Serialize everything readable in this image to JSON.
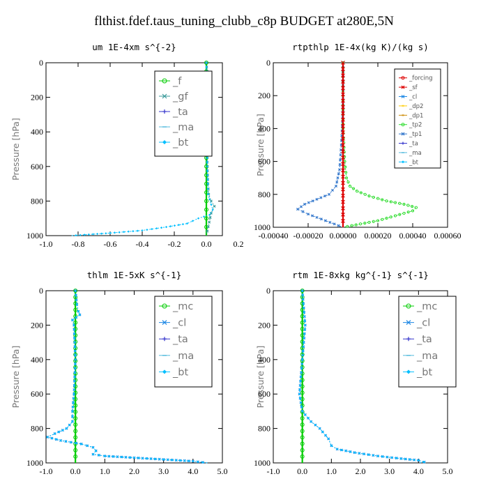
{
  "title": "flthist.fdef.taus_tuning_clubb_c8p  BUDGET at280E,5N",
  "chart_data": [
    {
      "type": "line",
      "title": "um  1E-4xm s^{-2}",
      "ylabel": "Pressure [hPa]",
      "xlim": [
        -1.0,
        0.1
      ],
      "ylim": [
        1000,
        0
      ],
      "xticks": [
        "-1.0",
        "-0.8",
        "-0.6",
        "-0.4",
        "-0.2",
        "0.0",
        "0.2"
      ],
      "xtick_values": [
        -1.0,
        -0.8,
        -0.6,
        -0.4,
        -0.2,
        0.0,
        0.2
      ],
      "yticks": [
        "0",
        "200",
        "400",
        "600",
        "800",
        "1000"
      ],
      "legend": [
        "_f",
        "_gf",
        "_ta",
        "_ma",
        "_bt"
      ],
      "legend_position": "top-right",
      "series": [
        {
          "name": "_f",
          "color": "#00cc00",
          "x": [
            0.0,
            0.0,
            0.0,
            0.0,
            0.0,
            0.0,
            0.0,
            0.0,
            0.0,
            0.0,
            0.0
          ],
          "y": [
            0,
            100,
            200,
            300,
            400,
            500,
            600,
            700,
            800,
            900,
            1000
          ]
        },
        {
          "name": "_gf",
          "color": "#3a9a9a",
          "x": [
            0.0,
            0.01,
            0.01,
            0.02,
            0.0,
            0.005,
            0.005,
            0.01,
            0.015,
            0.03,
            0.05,
            0.03,
            0.0
          ],
          "y": [
            0,
            100,
            140,
            160,
            250,
            400,
            550,
            700,
            760,
            800,
            830,
            870,
            1000
          ]
        },
        {
          "name": "_bt",
          "color": "#00bfff",
          "x": [
            0.0,
            0.005,
            0.005,
            0.005,
            0.01,
            0.01,
            0.02,
            0.03,
            0.04,
            0.02,
            -0.05,
            -0.12,
            -0.25,
            -0.4,
            -0.6,
            -0.84
          ],
          "y": [
            0,
            200,
            400,
            600,
            700,
            760,
            790,
            820,
            850,
            880,
            900,
            930,
            950,
            970,
            985,
            1000
          ]
        }
      ]
    },
    {
      "type": "line",
      "title": "rtpthlp  1E-4x(kg K)/(kg s)",
      "ylabel": "Pressure [hPa]",
      "xlim": [
        -0.0004,
        0.0006
      ],
      "ylim": [
        1000,
        0
      ],
      "xticks": [
        "-0.00040",
        "-0.00020",
        "0.00000",
        "0.00020",
        "0.00040",
        "0.00060"
      ],
      "xtick_values": [
        -0.0004,
        -0.0002,
        0.0,
        0.0002,
        0.0004,
        0.0006
      ],
      "yticks": [
        "0",
        "200",
        "400",
        "600",
        "800",
        "1000"
      ],
      "legend": [
        "_forcing",
        "_sf",
        "_cl",
        "_dp2",
        "_dp1",
        "_tp2",
        "_tp1",
        "_ta",
        "_ma",
        "_bt"
      ],
      "legend_position": "top-right",
      "series": [
        {
          "name": "_tp2",
          "color": "#33dd33",
          "x": [
            0.0,
            0.0,
            0.0,
            1e-05,
            2e-05,
            4e-05,
            8e-05,
            0.00015,
            0.00025,
            0.00035,
            0.00042,
            0.0004,
            0.0002,
            0.0
          ],
          "y": [
            0,
            200,
            400,
            600,
            700,
            750,
            780,
            810,
            840,
            860,
            880,
            900,
            960,
            1000
          ]
        },
        {
          "name": "_tp1",
          "color": "#3377cc",
          "x": [
            0.0,
            0.0,
            -1e-05,
            -2e-05,
            -4e-05,
            -8e-05,
            -0.00015,
            -0.00022,
            -0.00026,
            -0.0002,
            -0.0001,
            0.0
          ],
          "y": [
            0,
            300,
            500,
            650,
            750,
            800,
            830,
            860,
            890,
            920,
            960,
            1000
          ]
        },
        {
          "name": "_sf",
          "color": "#dd0000",
          "x": [
            0.0,
            0.0
          ],
          "y": [
            0,
            1000
          ]
        }
      ]
    },
    {
      "type": "line",
      "title": "thlm  1E-5xK s^{-1}",
      "ylabel": "Pressure [hPa]",
      "xlim": [
        -1.0,
        5.0
      ],
      "ylim": [
        1000,
        0
      ],
      "xticks": [
        "-1.0",
        "0.0",
        "1.0",
        "2.0",
        "3.0",
        "4.0",
        "5.0"
      ],
      "xtick_values": [
        -1.0,
        0.0,
        1.0,
        2.0,
        3.0,
        4.0,
        5.0
      ],
      "yticks": [
        "0",
        "200",
        "400",
        "600",
        "800",
        "1000"
      ],
      "legend": [
        "_mc",
        "_cl",
        "_ta",
        "_ma",
        "_bt"
      ],
      "legend_position": "top-right",
      "series": [
        {
          "name": "_mc",
          "color": "#00cc00",
          "x": [
            0.0,
            0.0
          ],
          "y": [
            0,
            1000
          ]
        },
        {
          "name": "_cl",
          "color": "#1e88e5",
          "x": [
            0.0,
            0.05,
            0.1,
            0.15,
            -0.1,
            -0.05,
            0.0,
            -0.05,
            -0.1,
            -0.1,
            -0.3,
            -0.7,
            -0.95,
            -0.5,
            0.2,
            0.6,
            0.7,
            0.6,
            1.0,
            2.0,
            3.0,
            4.0,
            4.5
          ],
          "y": [
            0,
            80,
            120,
            140,
            170,
            200,
            400,
            600,
            700,
            760,
            800,
            830,
            850,
            870,
            890,
            910,
            930,
            950,
            960,
            970,
            980,
            990,
            1000
          ]
        },
        {
          "name": "_bt",
          "color": "#00bfff",
          "x": [
            0.0,
            0.05,
            0.1,
            0.15,
            -0.1,
            -0.05,
            0.0,
            -0.05,
            -0.1,
            -0.1,
            -0.3,
            -0.7,
            -0.95,
            -0.5,
            0.2,
            0.6,
            0.7,
            0.6,
            1.0,
            2.0,
            3.0,
            4.0,
            4.5
          ],
          "y": [
            0,
            80,
            120,
            140,
            170,
            200,
            400,
            600,
            700,
            760,
            800,
            830,
            850,
            870,
            890,
            910,
            930,
            950,
            960,
            970,
            980,
            990,
            1000
          ]
        }
      ]
    },
    {
      "type": "line",
      "title": "rtm  1E-8xkg kg^{-1} s^{-1}",
      "ylabel": "Pressure [hPa]",
      "xlim": [
        -1.0,
        5.0
      ],
      "ylim": [
        1000,
        0
      ],
      "xticks": [
        "-1.0",
        "0.0",
        "1.0",
        "2.0",
        "3.0",
        "4.0",
        "5.0"
      ],
      "xtick_values": [
        -1.0,
        0.0,
        1.0,
        2.0,
        3.0,
        4.0,
        5.0
      ],
      "yticks": [
        "0",
        "200",
        "400",
        "600",
        "800",
        "1000"
      ],
      "legend": [
        "_mc",
        "_cl",
        "_ta",
        "_ma",
        "_bt"
      ],
      "legend_position": "top-right",
      "series": [
        {
          "name": "_mc",
          "color": "#00cc00",
          "x": [
            0.0,
            0.0
          ],
          "y": [
            0,
            1000
          ]
        },
        {
          "name": "_cl",
          "color": "#1e88e5",
          "x": [
            0.0,
            0.05,
            0.1,
            0.05,
            0.0,
            -0.05,
            -0.1,
            0.0,
            0.3,
            0.6,
            0.9,
            1.0,
            1.2,
            1.8,
            2.6,
            3.4,
            4.0,
            4.2,
            4.0
          ],
          "y": [
            0,
            100,
            200,
            300,
            400,
            500,
            600,
            700,
            760,
            800,
            860,
            900,
            920,
            940,
            960,
            975,
            985,
            995,
            1000
          ]
        },
        {
          "name": "_bt",
          "color": "#00bfff",
          "x": [
            0.0,
            0.05,
            0.1,
            0.05,
            0.0,
            -0.05,
            -0.1,
            0.0,
            0.3,
            0.6,
            0.9,
            1.0,
            1.2,
            1.8,
            2.6,
            3.4,
            4.0,
            4.2,
            4.0
          ],
          "y": [
            0,
            100,
            200,
            300,
            400,
            500,
            600,
            700,
            760,
            800,
            860,
            900,
            920,
            940,
            960,
            975,
            985,
            995,
            1000
          ]
        }
      ]
    }
  ]
}
